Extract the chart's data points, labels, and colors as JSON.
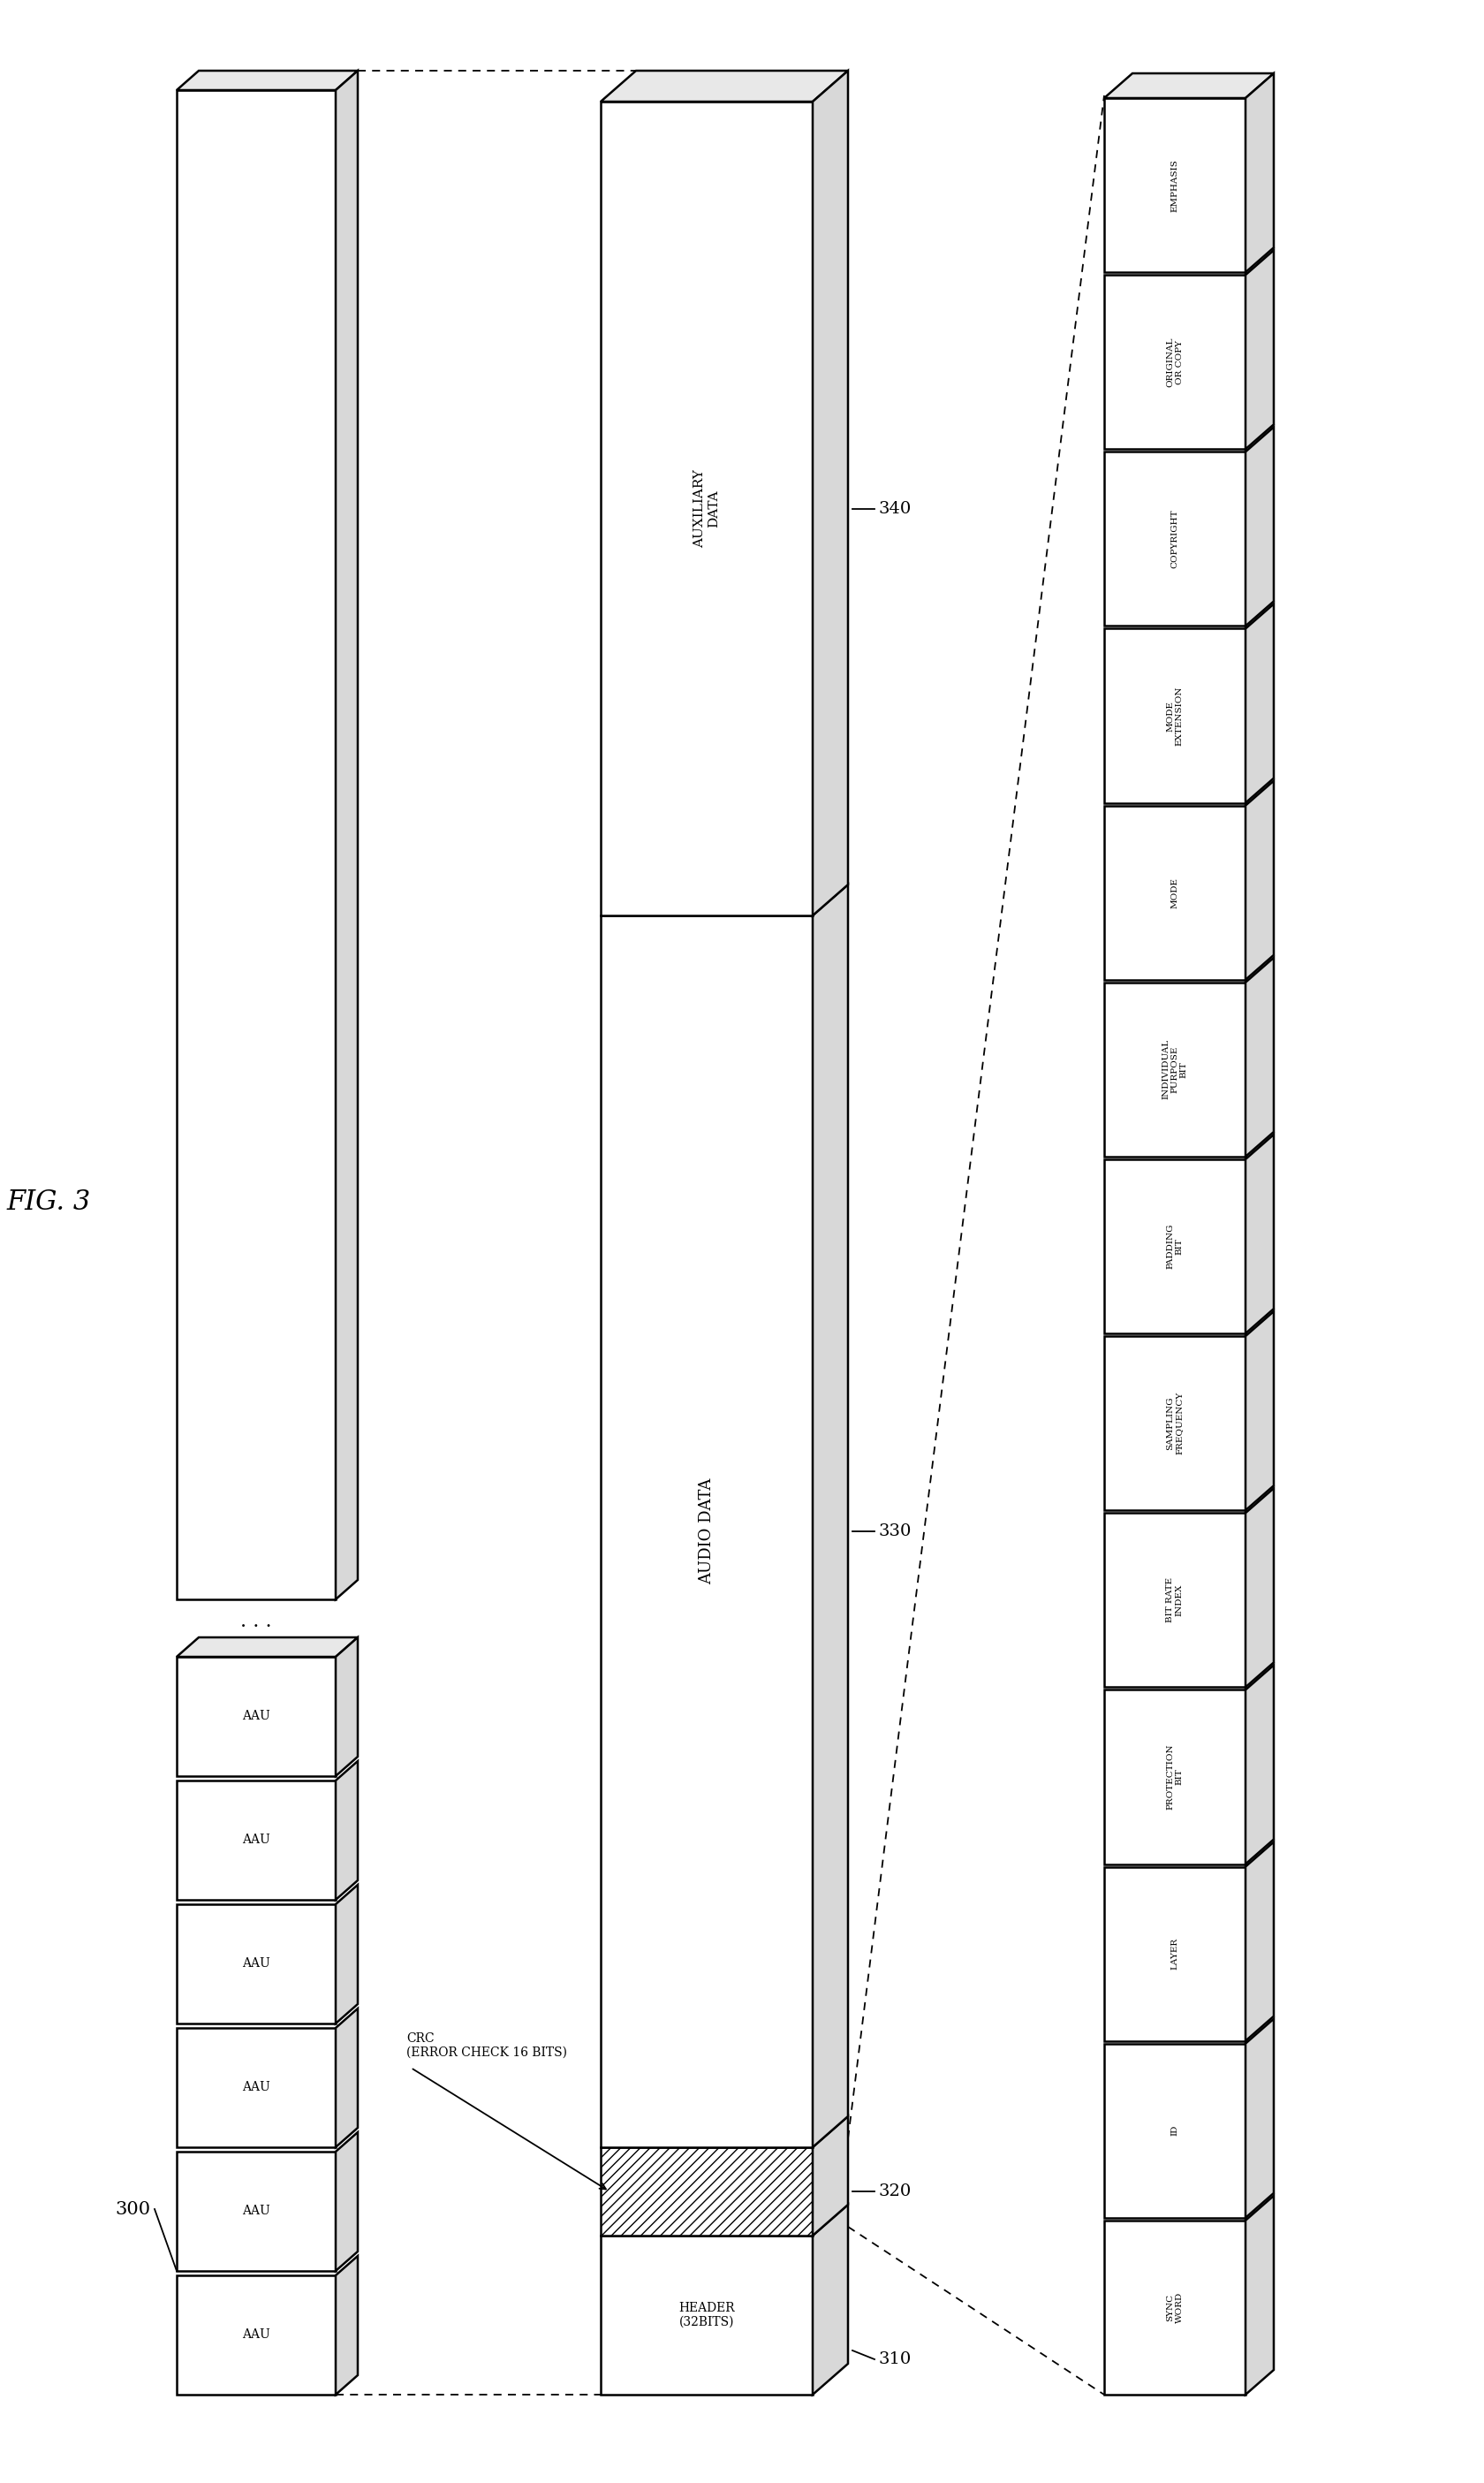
{
  "bg_color": "#ffffff",
  "fig_label_text": "FIG. 3",
  "ref_300": "300",
  "ref_310": "310",
  "ref_320": "320",
  "ref_330": "330",
  "ref_340": "340",
  "header_label": "HEADER\n(32BITS)",
  "crc_label": "CRC\n(ERROR CHECK 16 BITS)",
  "audio_label": "AUDIO DATA",
  "aux_label": "AUXILIARY\nDATA",
  "header_fields": [
    "SYNC\nWORD",
    "ID",
    "LAYER",
    "PROTECTION\nBIT",
    "BIT RATE\nINDEX",
    "SAMPLING\nFREQUENCY",
    "PADDING\nBIT",
    "INDIVIDUAL\nPURPOSE\nBIT",
    "MODE",
    "MODE\nEXTENSION",
    "COPYRIGHT",
    "ORIGINAL\nOR COPY",
    "EMPHASIS"
  ],
  "aau_labels": [
    "AAU",
    "AAU",
    "AAU",
    "AAU",
    "AAU",
    "AAU"
  ]
}
